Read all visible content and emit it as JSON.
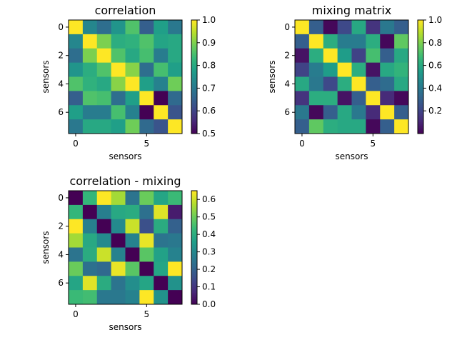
{
  "chart_data": [
    {
      "type": "heatmap",
      "title": "correlation",
      "xlabel": "sensors",
      "ylabel": "sensors",
      "x_ticks": [
        "0",
        "5"
      ],
      "y_ticks": [
        "0",
        "2",
        "4",
        "6"
      ],
      "colormap": "viridis",
      "vmin": 0.5,
      "vmax": 1.0,
      "colorbar_ticks": [
        "0.5",
        "0.6",
        "0.7",
        "0.8",
        "0.9",
        "1.0"
      ],
      "values": [
        [
          1.0,
          0.73,
          0.68,
          0.76,
          0.86,
          0.65,
          0.78,
          0.7
        ],
        [
          0.73,
          1.0,
          0.9,
          0.81,
          0.82,
          0.86,
          0.79,
          0.8
        ],
        [
          0.68,
          0.9,
          1.0,
          0.86,
          0.8,
          0.85,
          0.71,
          0.8
        ],
        [
          0.76,
          0.81,
          0.86,
          1.0,
          0.91,
          0.68,
          0.85,
          0.78
        ],
        [
          0.86,
          0.82,
          0.8,
          0.91,
          1.0,
          0.78,
          0.72,
          0.89
        ],
        [
          0.65,
          0.86,
          0.85,
          0.68,
          0.78,
          1.0,
          0.5,
          0.67
        ],
        [
          0.78,
          0.71,
          0.71,
          0.85,
          0.72,
          0.5,
          1.0,
          0.63
        ],
        [
          0.7,
          0.8,
          0.8,
          0.78,
          0.89,
          0.67,
          0.63,
          1.0
        ]
      ]
    },
    {
      "type": "heatmap",
      "title": "mixing matrix",
      "xlabel": "sensors",
      "ylabel": "sensors",
      "x_ticks": [
        "0",
        "5"
      ],
      "y_ticks": [
        "0",
        "2",
        "4",
        "6"
      ],
      "colormap": "viridis",
      "vmin": 0.0,
      "vmax": 1.0,
      "colorbar_ticks": [
        "0.2",
        "0.4",
        "0.6",
        "0.8",
        "1.0"
      ],
      "values": [
        [
          1.0,
          0.3,
          0.02,
          0.22,
          0.6,
          0.15,
          0.4,
          0.3
        ],
        [
          0.3,
          1.0,
          0.62,
          0.42,
          0.42,
          0.62,
          0.02,
          0.75
        ],
        [
          0.05,
          0.62,
          1.0,
          0.55,
          0.2,
          0.7,
          0.3,
          0.6
        ],
        [
          0.2,
          0.42,
          0.55,
          1.0,
          0.62,
          0.05,
          0.6,
          0.65
        ],
        [
          0.6,
          0.4,
          0.22,
          0.62,
          1.0,
          0.3,
          0.35,
          0.6
        ],
        [
          0.15,
          0.62,
          0.62,
          0.05,
          0.3,
          1.0,
          0.12,
          0.02
        ],
        [
          0.4,
          0.02,
          0.3,
          0.6,
          0.4,
          0.12,
          1.0,
          0.3
        ],
        [
          0.3,
          0.75,
          0.62,
          0.6,
          0.6,
          0.02,
          0.3,
          1.0
        ]
      ]
    },
    {
      "type": "heatmap",
      "title": "correlation - mixing",
      "xlabel": "sensors",
      "ylabel": "sensors",
      "x_ticks": [
        "0",
        "5"
      ],
      "y_ticks": [
        "0",
        "2",
        "4",
        "6"
      ],
      "colormap": "viridis",
      "vmin": 0.0,
      "vmax": 0.65,
      "colorbar_ticks": [
        "0.0",
        "0.1",
        "0.2",
        "0.3",
        "0.4",
        "0.5",
        "0.6"
      ],
      "values": [
        [
          0.0,
          0.43,
          0.65,
          0.56,
          0.25,
          0.5,
          0.38,
          0.44
        ],
        [
          0.43,
          0.0,
          0.28,
          0.39,
          0.4,
          0.24,
          0.62,
          0.05
        ],
        [
          0.65,
          0.28,
          0.0,
          0.31,
          0.6,
          0.16,
          0.4,
          0.2
        ],
        [
          0.56,
          0.39,
          0.31,
          0.0,
          0.29,
          0.63,
          0.25,
          0.26
        ],
        [
          0.25,
          0.4,
          0.6,
          0.29,
          0.0,
          0.48,
          0.37,
          0.29
        ],
        [
          0.5,
          0.24,
          0.22,
          0.63,
          0.48,
          0.0,
          0.38,
          0.65
        ],
        [
          0.38,
          0.62,
          0.4,
          0.25,
          0.32,
          0.38,
          0.0,
          0.33
        ],
        [
          0.44,
          0.45,
          0.26,
          0.26,
          0.29,
          0.65,
          0.33,
          0.0
        ]
      ]
    }
  ]
}
